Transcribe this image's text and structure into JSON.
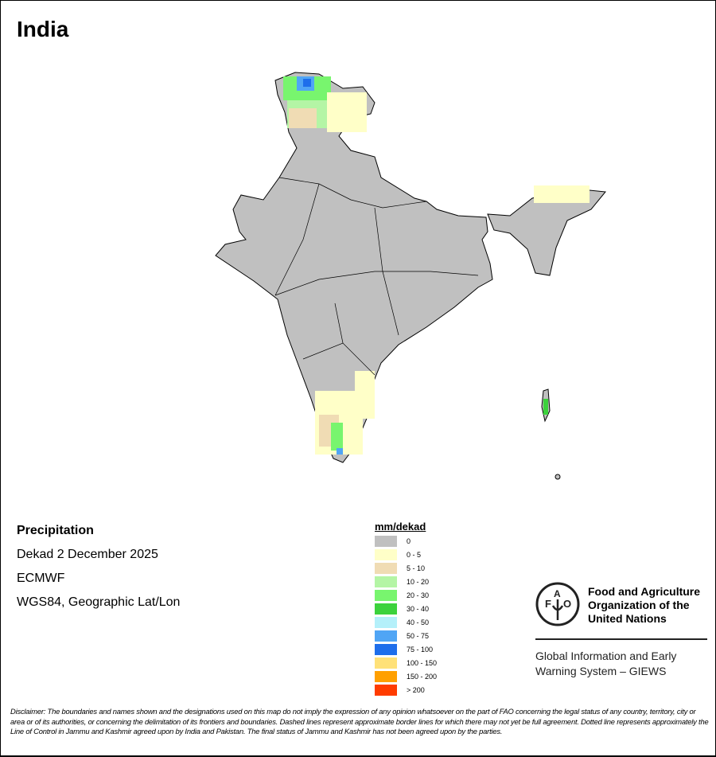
{
  "title": "India",
  "info": {
    "variable": "Precipitation",
    "period": "Dekad 2 December 2025",
    "source": "ECMWF",
    "projection": "WGS84, Geographic Lat/Lon"
  },
  "legend": {
    "title": "mm/dekad",
    "items": [
      {
        "label": "0",
        "color": "#c0c0c0"
      },
      {
        "label": "0 - 5",
        "color": "#ffffc8"
      },
      {
        "label": "5 - 10",
        "color": "#f0dcb4"
      },
      {
        "label": "10 - 20",
        "color": "#b4f5a5"
      },
      {
        "label": "20 - 30",
        "color": "#78f56e"
      },
      {
        "label": "30 - 40",
        "color": "#3cd23c"
      },
      {
        "label": "40 - 50",
        "color": "#b4f0fa"
      },
      {
        "label": "50 - 75",
        "color": "#50a5f5"
      },
      {
        "label": "75 - 100",
        "color": "#1e6eeb"
      },
      {
        "label": "100 - 150",
        "color": "#ffe178"
      },
      {
        "label": "150 - 200",
        "color": "#ffa000"
      },
      {
        "label": "> 200",
        "color": "#ff3c00"
      }
    ]
  },
  "fao": {
    "logo_text": "FAO FIAT PANIS",
    "name_lines": [
      "Food and Agriculture",
      "Organization of the",
      "United Nations"
    ],
    "giews_lines": [
      "Global Information and Early",
      "Warning System – GIEWS"
    ]
  },
  "disclaimer": "Disclaimer: The boundaries and names shown and the designations used on this map do not imply the expression of any opinion whatsoever on the part of FAO concerning the legal status of any country, territory, city or area or of its authorities, or concerning the delimitation of its frontiers and boundaries. Dashed lines represent approximate border lines for which there may not yet be full agreement. Dotted line represents approximately the Line of Control in Jammu and Kashmir agreed upon by India and Pakistan. The final status of Jammu and Kashmir has not been agreed upon by the parties."
}
